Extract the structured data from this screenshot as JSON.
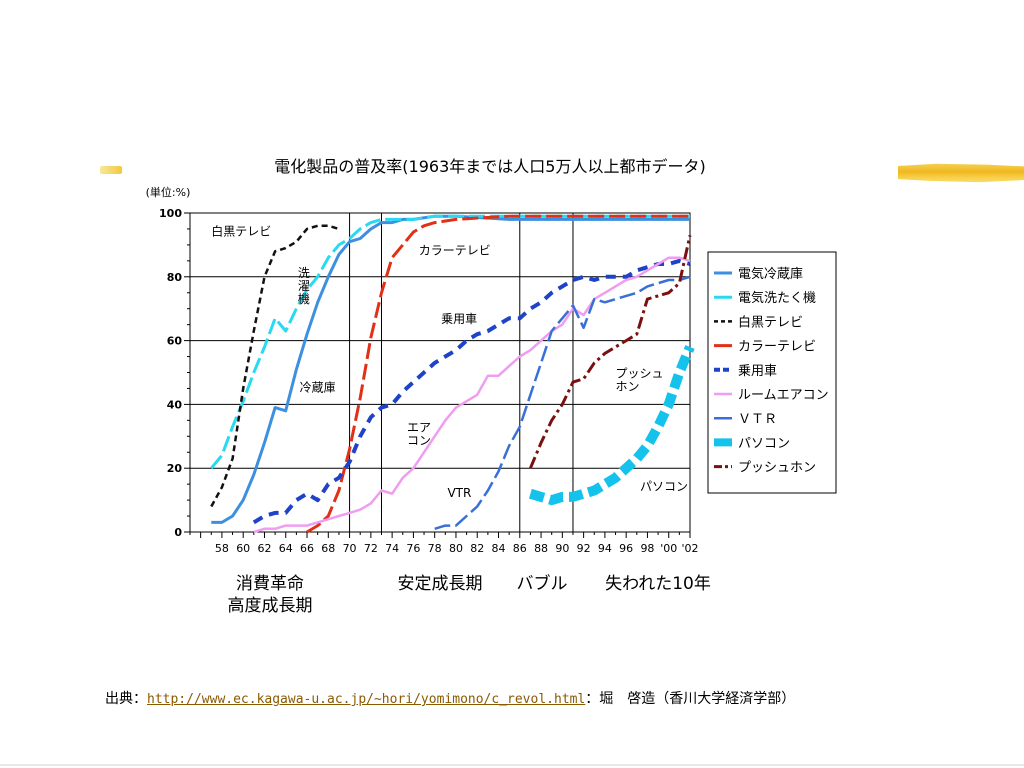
{
  "chart_data": {
    "type": "line",
    "title": "電化製品の普及率(1963年までは人口5万人以上都市データ)",
    "unit_label": "(単位:%)",
    "ylim": [
      0,
      100
    ],
    "y_ticks": [
      "0",
      "20",
      "40",
      "60",
      "80",
      "100"
    ],
    "xlim": [
      1955,
      2002
    ],
    "x_ticks": [
      {
        "year": 1958,
        "label": "58"
      },
      {
        "year": 1960,
        "label": "60"
      },
      {
        "year": 1962,
        "label": "62"
      },
      {
        "year": 1964,
        "label": "64"
      },
      {
        "year": 1966,
        "label": "66"
      },
      {
        "year": 1968,
        "label": "68"
      },
      {
        "year": 1970,
        "label": "70"
      },
      {
        "year": 1972,
        "label": "72"
      },
      {
        "year": 1974,
        "label": "74"
      },
      {
        "year": 1976,
        "label": "76"
      },
      {
        "year": 1978,
        "label": "78"
      },
      {
        "year": 1980,
        "label": "80"
      },
      {
        "year": 1982,
        "label": "82"
      },
      {
        "year": 1984,
        "label": "84"
      },
      {
        "year": 1986,
        "label": "86"
      },
      {
        "year": 1988,
        "label": "88"
      },
      {
        "year": 1990,
        "label": "90"
      },
      {
        "year": 1992,
        "label": "92"
      },
      {
        "year": 1994,
        "label": "94"
      },
      {
        "year": 1996,
        "label": "96"
      },
      {
        "year": 1998,
        "label": "98"
      },
      {
        "year": 2000,
        "label": "'00"
      },
      {
        "year": 2002,
        "label": "'02"
      }
    ],
    "period_dividers": [
      1970,
      1973,
      1986,
      1991
    ],
    "grid": true,
    "legend_position": "right",
    "series": [
      {
        "name": "電気冷蔵庫",
        "color": "#3d8fe0",
        "dash": "solid",
        "width": 3,
        "x": [
          1957,
          1958,
          1959,
          1960,
          1961,
          1962,
          1963,
          1964,
          1965,
          1966,
          1967,
          1968,
          1969,
          1970,
          1971,
          1972,
          1973,
          1974,
          1975,
          1976,
          1978,
          1980,
          1985,
          1990,
          1995,
          2002
        ],
        "y": [
          3,
          3,
          5,
          10,
          18,
          28,
          39,
          38,
          51,
          62,
          72,
          80,
          87,
          91,
          92,
          95,
          97,
          97,
          98,
          98,
          99,
          99,
          98,
          98,
          98,
          98
        ]
      },
      {
        "name": "電気洗たく機",
        "color": "#29d9f2",
        "dash": "longdash",
        "width": 3,
        "x": [
          1957,
          1958,
          1959,
          1960,
          1961,
          1962,
          1963,
          1964,
          1965,
          1966,
          1967,
          1968,
          1969,
          1970,
          1971,
          1972,
          1973,
          1974,
          1975,
          1976,
          1978,
          1980,
          1985,
          1990,
          1995,
          2002
        ],
        "y": [
          20,
          24,
          33,
          41,
          50,
          58,
          67,
          63,
          70,
          76,
          80,
          86,
          90,
          92,
          95,
          97,
          98,
          98,
          98,
          98,
          99,
          99,
          99,
          99,
          99,
          99
        ]
      },
      {
        "name": "白黒テレビ",
        "color": "#111111",
        "dash": "shortdash",
        "width": 2.5,
        "x": [
          1957,
          1958,
          1959,
          1960,
          1961,
          1962,
          1963,
          1964,
          1965,
          1966,
          1967,
          1968,
          1969
        ],
        "y": [
          8,
          14,
          23,
          45,
          63,
          80,
          88,
          89,
          91,
          95,
          96,
          96,
          95
        ]
      },
      {
        "name": "カラーテレビ",
        "color": "#e03018",
        "dash": "longdash",
        "width": 3,
        "x": [
          1966,
          1967,
          1968,
          1969,
          1970,
          1971,
          1972,
          1973,
          1974,
          1975,
          1976,
          1977,
          1978,
          1980,
          1985,
          1990,
          1995,
          2002
        ],
        "y": [
          0,
          2,
          5,
          13,
          26,
          42,
          61,
          75,
          86,
          90,
          94,
          96,
          97,
          98,
          99,
          99,
          99,
          99
        ]
      },
      {
        "name": "乗用車",
        "color": "#1f43c8",
        "dash": "dash",
        "width": 4,
        "x": [
          1961,
          1962,
          1963,
          1964,
          1965,
          1966,
          1967,
          1968,
          1969,
          1970,
          1971,
          1972,
          1973,
          1974,
          1975,
          1976,
          1977,
          1978,
          1979,
          1980,
          1981,
          1982,
          1983,
          1984,
          1985,
          1986,
          1987,
          1988,
          1989,
          1990,
          1991,
          1992,
          1993,
          1994,
          1995,
          1996,
          1997,
          1998,
          1999,
          2000,
          2001,
          2002
        ],
        "y": [
          3,
          5,
          6,
          6,
          10,
          12,
          10,
          15,
          17,
          22,
          30,
          36,
          39,
          40,
          44,
          47,
          50,
          53,
          55,
          57,
          60,
          62,
          63,
          65,
          67,
          67,
          70,
          72,
          75,
          77,
          79,
          80,
          79,
          80,
          80,
          80,
          82,
          83,
          84,
          84,
          85,
          84
        ]
      },
      {
        "name": "ルームエアコン",
        "color": "#f09cf0",
        "dash": "solid",
        "width": 2.5,
        "x": [
          1961,
          1962,
          1963,
          1964,
          1965,
          1966,
          1967,
          1968,
          1969,
          1970,
          1971,
          1972,
          1973,
          1974,
          1975,
          1976,
          1977,
          1978,
          1979,
          1980,
          1981,
          1982,
          1983,
          1984,
          1985,
          1986,
          1987,
          1988,
          1989,
          1990,
          1991,
          1992,
          1993,
          1994,
          1995,
          1996,
          1997,
          1998,
          1999,
          2000,
          2001,
          2002
        ],
        "y": [
          0,
          1,
          1,
          2,
          2,
          2,
          3,
          4,
          5,
          6,
          7,
          9,
          13,
          12,
          17,
          20,
          25,
          30,
          35,
          39,
          41,
          43,
          49,
          49,
          52,
          55,
          57,
          60,
          63,
          65,
          70,
          68,
          73,
          75,
          77,
          79,
          80,
          82,
          84,
          86,
          86,
          85
        ]
      },
      {
        "name": "ＶＴＲ",
        "color": "#3a6fd8",
        "dash": "longdash",
        "width": 2.5,
        "x": [
          1978,
          1979,
          1980,
          1981,
          1982,
          1983,
          1984,
          1985,
          1986,
          1987,
          1988,
          1989,
          1990,
          1991,
          1992,
          1993,
          1994,
          1995,
          1996,
          1997,
          1998,
          1999,
          2000,
          2001,
          2002
        ],
        "y": [
          1,
          2,
          2,
          5,
          8,
          13,
          19,
          27,
          33,
          43,
          53,
          63,
          67,
          71,
          64,
          73,
          72,
          73,
          74,
          75,
          77,
          78,
          79,
          79,
          80
        ]
      },
      {
        "name": "パソコン",
        "color": "#14c2ec",
        "dash": "thick",
        "width": 10,
        "x": [
          1987,
          1988,
          1989,
          1990,
          1991,
          1992,
          1993,
          1994,
          1995,
          1996,
          1997,
          1998,
          1999,
          2000,
          2001,
          2002
        ],
        "y": [
          12,
          11,
          10,
          11,
          11,
          12,
          13,
          15,
          17,
          20,
          23,
          27,
          33,
          40,
          50,
          58
        ]
      },
      {
        "name": "プッシュホン",
        "color": "#7a1010",
        "dash": "dashdot",
        "width": 3,
        "x": [
          1987,
          1988,
          1989,
          1990,
          1991,
          1992,
          1993,
          1994,
          1995,
          1996,
          1997,
          1998,
          1999,
          2000,
          2001,
          2002
        ],
        "y": [
          20,
          28,
          35,
          40,
          47,
          48,
          53,
          56,
          58,
          60,
          62,
          73,
          74,
          75,
          78,
          93
        ]
      }
    ],
    "annotations": [
      {
        "text": "白黒テレビ",
        "year": 1957,
        "value": 93
      },
      {
        "text": "カラーテレビ",
        "year": 1976.5,
        "value": 87
      },
      {
        "text": "洗濯機",
        "year": 1965.7,
        "value": 80,
        "vertical": true
      },
      {
        "text": "乗用車",
        "year": 1978.6,
        "value": 65.5
      },
      {
        "text": "冷蔵庫",
        "year": 1965.3,
        "value": 44
      },
      {
        "text": "エア\nコン",
        "year": 1975.4,
        "value": 31.5
      },
      {
        "text": "プッシュ\nホン",
        "year": 1995,
        "value": 48.5
      },
      {
        "text": "VTR",
        "year": 1979.2,
        "value": 11
      },
      {
        "text": "パソコン",
        "year": 1997.3,
        "value": 13
      }
    ]
  },
  "periods": [
    {
      "name": "消費革命\n高度成長期",
      "x": 270
    },
    {
      "name": "安定成長期",
      "x": 440
    },
    {
      "name": "バブル",
      "x": 542
    },
    {
      "name": "失われた10年",
      "x": 658
    }
  ],
  "footer": {
    "source_label": "出典：",
    "url": "http://www.ec.kagawa-u.ac.jp/~hori/yomimono/c_revol.html",
    "author": "：堀　啓造（香川大学経済学部）"
  }
}
